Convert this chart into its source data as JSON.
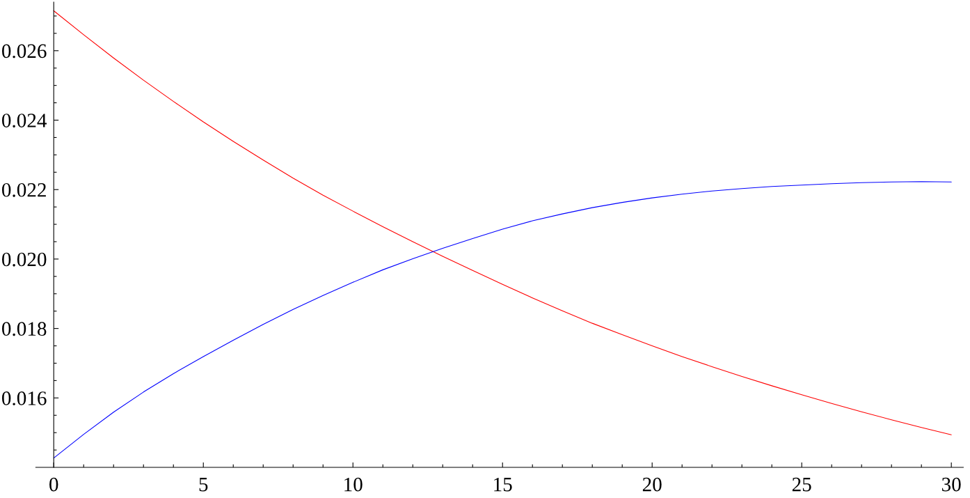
{
  "chart_data": {
    "type": "line",
    "x": [
      0,
      1,
      2,
      3,
      4,
      5,
      6,
      7,
      8,
      9,
      10,
      11,
      12,
      13,
      14,
      15,
      16,
      17,
      18,
      19,
      20,
      21,
      22,
      23,
      24,
      25,
      26,
      27,
      28,
      29,
      30
    ],
    "series": [
      {
        "color": "#ff0000",
        "values": [
          0.02715,
          0.02646,
          0.02579,
          0.02515,
          0.02454,
          0.02395,
          0.02339,
          0.02285,
          0.02233,
          0.02184,
          0.02138,
          0.02093,
          0.0205,
          0.02008,
          0.01967,
          0.01927,
          0.01888,
          0.01851,
          0.01815,
          0.01782,
          0.0175,
          0.01719,
          0.0169,
          0.01662,
          0.01635,
          0.01609,
          0.01584,
          0.0156,
          0.01537,
          0.01515,
          0.01494
        ]
      },
      {
        "color": "#0000ff",
        "values": [
          0.01427,
          0.01495,
          0.01559,
          0.01617,
          0.0167,
          0.01719,
          0.01766,
          0.01812,
          0.01855,
          0.01895,
          0.01933,
          0.01969,
          0.02001,
          0.02031,
          0.02059,
          0.02086,
          0.0211,
          0.0213,
          0.02148,
          0.02163,
          0.02176,
          0.02187,
          0.02196,
          0.02203,
          0.02209,
          0.02213,
          0.02217,
          0.0222,
          0.02222,
          0.02223,
          0.02222
        ]
      }
    ],
    "xlim": [
      -0.6,
      30.4
    ],
    "ylim": [
      0.014,
      0.0274
    ],
    "xticks": [
      0,
      {
        "value": 1,
        "label": null
      },
      {
        "value": 2,
        "label": null
      },
      {
        "value": 3,
        "label": null
      },
      {
        "value": 4,
        "label": null
      },
      5,
      {
        "value": 6,
        "label": null
      },
      {
        "value": 7,
        "label": null
      },
      {
        "value": 8,
        "label": null
      },
      {
        "value": 9,
        "label": null
      },
      10,
      {
        "value": 11,
        "label": null
      },
      {
        "value": 12,
        "label": null
      },
      {
        "value": 13,
        "label": null
      },
      {
        "value": 14,
        "label": null
      },
      15,
      {
        "value": 16,
        "label": null
      },
      {
        "value": 17,
        "label": null
      },
      {
        "value": 18,
        "label": null
      },
      {
        "value": 19,
        "label": null
      },
      20,
      {
        "value": 21,
        "label": null
      },
      {
        "value": 22,
        "label": null
      },
      {
        "value": 23,
        "label": null
      },
      {
        "value": 24,
        "label": null
      },
      25,
      {
        "value": 26,
        "label": null
      },
      {
        "value": 27,
        "label": null
      },
      {
        "value": 28,
        "label": null
      },
      {
        "value": 29,
        "label": null
      },
      30
    ],
    "yticks": [
      {
        "value": 0.0145,
        "label": null
      },
      {
        "value": 0.015,
        "label": null
      },
      {
        "value": 0.0155,
        "label": null
      },
      0.016,
      {
        "value": 0.0165,
        "label": null
      },
      {
        "value": 0.017,
        "label": null
      },
      {
        "value": 0.0175,
        "label": null
      },
      0.018,
      {
        "value": 0.0185,
        "label": null
      },
      {
        "value": 0.019,
        "label": null
      },
      {
        "value": 0.0195,
        "label": null
      },
      {
        "value": 0.02,
        "label": "0.020"
      },
      {
        "value": 0.0205,
        "label": null
      },
      {
        "value": 0.021,
        "label": null
      },
      {
        "value": 0.0215,
        "label": null
      },
      0.022,
      {
        "value": 0.0225,
        "label": null
      },
      {
        "value": 0.023,
        "label": null
      },
      {
        "value": 0.0235,
        "label": null
      },
      0.024,
      {
        "value": 0.0245,
        "label": null
      },
      {
        "value": 0.025,
        "label": null
      },
      {
        "value": 0.0255,
        "label": null
      },
      0.026,
      {
        "value": 0.0265,
        "label": null
      },
      {
        "value": 0.027,
        "label": null
      }
    ]
  }
}
